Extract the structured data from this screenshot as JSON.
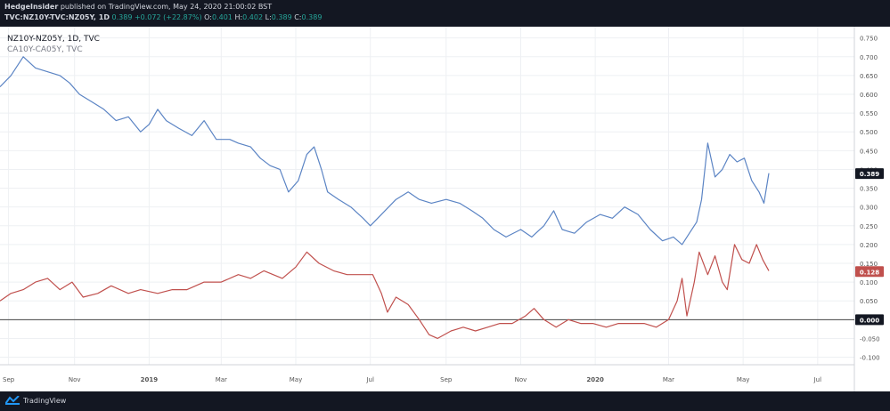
{
  "header": {
    "author": "HedgeInsider",
    "published_text": "published on TradingView.com, May 24, 2020 21:00:02 BST",
    "symbol": "TVC:NZ10Y-TVC:NZ05Y, 1D",
    "last": "0.389",
    "change": "+0.072 (+22.87%)",
    "o_label": "O:",
    "o_value": "0.401",
    "h_label": "H:",
    "h_value": "0.402",
    "l_label": "L:",
    "l_value": "0.389",
    "c_label": "C:",
    "c_value": "0.389"
  },
  "footer": {
    "brand": "TradingView"
  },
  "colors": {
    "background": "#131722",
    "pane": "#ffffff",
    "grid": "#eef0f3",
    "blue_series": "#5b84c4",
    "red_series": "#c0504d",
    "zero_line": "#444444"
  },
  "chart_data": {
    "type": "line",
    "title": "",
    "legend": [
      "NZ10Y-NZ05Y, 1D, TVC",
      "CA10Y-CA05Y, TVC"
    ],
    "legend_placement": "top-left",
    "x_ticks": [
      "Sep",
      "Nov",
      "2019",
      "Mar",
      "May",
      "Jul",
      "Sep",
      "Nov",
      "2020",
      "Mar",
      "May",
      "Jul"
    ],
    "y_ticks": [
      "0.750",
      "0.700",
      "0.650",
      "0.600",
      "0.550",
      "0.500",
      "0.450",
      "0.400",
      "0.350",
      "0.300",
      "0.250",
      "0.200",
      "0.150",
      "0.100",
      "0.050",
      "0.000",
      "-0.050",
      "-0.100"
    ],
    "ylim": [
      -0.12,
      0.78
    ],
    "x_range": [
      "2018-09-01",
      "2020-07-31"
    ],
    "grid": true,
    "horizontal_line": 0.0,
    "price_labels": [
      {
        "value": 0.389,
        "text": "0.389",
        "series": 0
      },
      {
        "value": 0.128,
        "text": "0.128",
        "series": 1
      },
      {
        "value": 0.0,
        "text": "0.000",
        "series": -1
      }
    ],
    "series": [
      {
        "name": "NZ10Y-NZ05Y, 1D, TVC",
        "points": [
          [
            "2018-09-01",
            0.62
          ],
          [
            "2018-09-10",
            0.65
          ],
          [
            "2018-09-20",
            0.7
          ],
          [
            "2018-09-30",
            0.67
          ],
          [
            "2018-10-10",
            0.66
          ],
          [
            "2018-10-20",
            0.65
          ],
          [
            "2018-10-28",
            0.63
          ],
          [
            "2018-11-05",
            0.6
          ],
          [
            "2018-11-15",
            0.58
          ],
          [
            "2018-11-25",
            0.56
          ],
          [
            "2018-12-05",
            0.53
          ],
          [
            "2018-12-15",
            0.54
          ],
          [
            "2018-12-25",
            0.5
          ],
          [
            "2019-01-01",
            0.52
          ],
          [
            "2019-01-08",
            0.56
          ],
          [
            "2019-01-15",
            0.53
          ],
          [
            "2019-01-25",
            0.51
          ],
          [
            "2019-02-05",
            0.49
          ],
          [
            "2019-02-15",
            0.53
          ],
          [
            "2019-02-25",
            0.48
          ],
          [
            "2019-03-08",
            0.48
          ],
          [
            "2019-03-15",
            0.47
          ],
          [
            "2019-03-25",
            0.46
          ],
          [
            "2019-04-02",
            0.43
          ],
          [
            "2019-04-10",
            0.41
          ],
          [
            "2019-04-18",
            0.4
          ],
          [
            "2019-04-25",
            0.34
          ],
          [
            "2019-05-03",
            0.37
          ],
          [
            "2019-05-10",
            0.44
          ],
          [
            "2019-05-16",
            0.46
          ],
          [
            "2019-05-22",
            0.4
          ],
          [
            "2019-05-27",
            0.34
          ],
          [
            "2019-06-05",
            0.32
          ],
          [
            "2019-06-15",
            0.3
          ],
          [
            "2019-06-25",
            0.27
          ],
          [
            "2019-07-01",
            0.25
          ],
          [
            "2019-07-10",
            0.28
          ],
          [
            "2019-07-22",
            0.32
          ],
          [
            "2019-08-01",
            0.34
          ],
          [
            "2019-08-10",
            0.32
          ],
          [
            "2019-08-20",
            0.31
          ],
          [
            "2019-09-01",
            0.32
          ],
          [
            "2019-09-12",
            0.31
          ],
          [
            "2019-09-22",
            0.29
          ],
          [
            "2019-10-01",
            0.27
          ],
          [
            "2019-10-10",
            0.24
          ],
          [
            "2019-10-20",
            0.22
          ],
          [
            "2019-11-01",
            0.24
          ],
          [
            "2019-11-10",
            0.22
          ],
          [
            "2019-11-20",
            0.25
          ],
          [
            "2019-11-28",
            0.29
          ],
          [
            "2019-12-05",
            0.24
          ],
          [
            "2019-12-15",
            0.23
          ],
          [
            "2019-12-25",
            0.26
          ],
          [
            "2020-01-05",
            0.28
          ],
          [
            "2020-01-15",
            0.27
          ],
          [
            "2020-01-25",
            0.3
          ],
          [
            "2020-02-05",
            0.28
          ],
          [
            "2020-02-15",
            0.24
          ],
          [
            "2020-02-25",
            0.21
          ],
          [
            "2020-03-05",
            0.22
          ],
          [
            "2020-03-12",
            0.2
          ],
          [
            "2020-03-18",
            0.23
          ],
          [
            "2020-03-24",
            0.26
          ],
          [
            "2020-03-28",
            0.32
          ],
          [
            "2020-04-02",
            0.47
          ],
          [
            "2020-04-08",
            0.38
          ],
          [
            "2020-04-14",
            0.4
          ],
          [
            "2020-04-20",
            0.44
          ],
          [
            "2020-04-26",
            0.42
          ],
          [
            "2020-05-02",
            0.43
          ],
          [
            "2020-05-08",
            0.37
          ],
          [
            "2020-05-14",
            0.34
          ],
          [
            "2020-05-18",
            0.31
          ],
          [
            "2020-05-22",
            0.39
          ]
        ]
      },
      {
        "name": "CA10Y-CA05Y, TVC",
        "points": [
          [
            "2018-09-01",
            0.05
          ],
          [
            "2018-09-10",
            0.07
          ],
          [
            "2018-09-20",
            0.08
          ],
          [
            "2018-09-30",
            0.1
          ],
          [
            "2018-10-10",
            0.11
          ],
          [
            "2018-10-20",
            0.08
          ],
          [
            "2018-10-30",
            0.1
          ],
          [
            "2018-11-08",
            0.06
          ],
          [
            "2018-11-20",
            0.07
          ],
          [
            "2018-12-01",
            0.09
          ],
          [
            "2018-12-15",
            0.07
          ],
          [
            "2018-12-25",
            0.08
          ],
          [
            "2019-01-08",
            0.07
          ],
          [
            "2019-01-20",
            0.08
          ],
          [
            "2019-02-01",
            0.08
          ],
          [
            "2019-02-15",
            0.1
          ],
          [
            "2019-03-01",
            0.1
          ],
          [
            "2019-03-15",
            0.12
          ],
          [
            "2019-03-25",
            0.11
          ],
          [
            "2019-04-05",
            0.13
          ],
          [
            "2019-04-20",
            0.11
          ],
          [
            "2019-05-01",
            0.14
          ],
          [
            "2019-05-10",
            0.18
          ],
          [
            "2019-05-20",
            0.15
          ],
          [
            "2019-06-01",
            0.13
          ],
          [
            "2019-06-12",
            0.12
          ],
          [
            "2019-06-22",
            0.12
          ],
          [
            "2019-07-03",
            0.12
          ],
          [
            "2019-07-10",
            0.07
          ],
          [
            "2019-07-15",
            0.02
          ],
          [
            "2019-07-22",
            0.06
          ],
          [
            "2019-08-01",
            0.04
          ],
          [
            "2019-08-10",
            0.0
          ],
          [
            "2019-08-18",
            -0.04
          ],
          [
            "2019-08-25",
            -0.05
          ],
          [
            "2019-09-05",
            -0.03
          ],
          [
            "2019-09-15",
            -0.02
          ],
          [
            "2019-09-25",
            -0.03
          ],
          [
            "2019-10-05",
            -0.02
          ],
          [
            "2019-10-15",
            -0.01
          ],
          [
            "2019-10-25",
            -0.01
          ],
          [
            "2019-11-05",
            0.01
          ],
          [
            "2019-11-12",
            0.03
          ],
          [
            "2019-11-20",
            0.0
          ],
          [
            "2019-11-30",
            -0.02
          ],
          [
            "2019-12-10",
            0.0
          ],
          [
            "2019-12-20",
            -0.01
          ],
          [
            "2019-12-30",
            -0.01
          ],
          [
            "2020-01-10",
            -0.02
          ],
          [
            "2020-01-20",
            -0.01
          ],
          [
            "2020-02-01",
            -0.01
          ],
          [
            "2020-02-10",
            -0.01
          ],
          [
            "2020-02-20",
            -0.02
          ],
          [
            "2020-03-01",
            0.0
          ],
          [
            "2020-03-08",
            0.05
          ],
          [
            "2020-03-12",
            0.11
          ],
          [
            "2020-03-16",
            0.01
          ],
          [
            "2020-03-22",
            0.1
          ],
          [
            "2020-03-26",
            0.18
          ],
          [
            "2020-04-02",
            0.12
          ],
          [
            "2020-04-08",
            0.17
          ],
          [
            "2020-04-14",
            0.1
          ],
          [
            "2020-04-18",
            0.08
          ],
          [
            "2020-04-24",
            0.2
          ],
          [
            "2020-04-30",
            0.16
          ],
          [
            "2020-05-06",
            0.15
          ],
          [
            "2020-05-12",
            0.2
          ],
          [
            "2020-05-17",
            0.16
          ],
          [
            "2020-05-22",
            0.13
          ]
        ]
      }
    ]
  }
}
